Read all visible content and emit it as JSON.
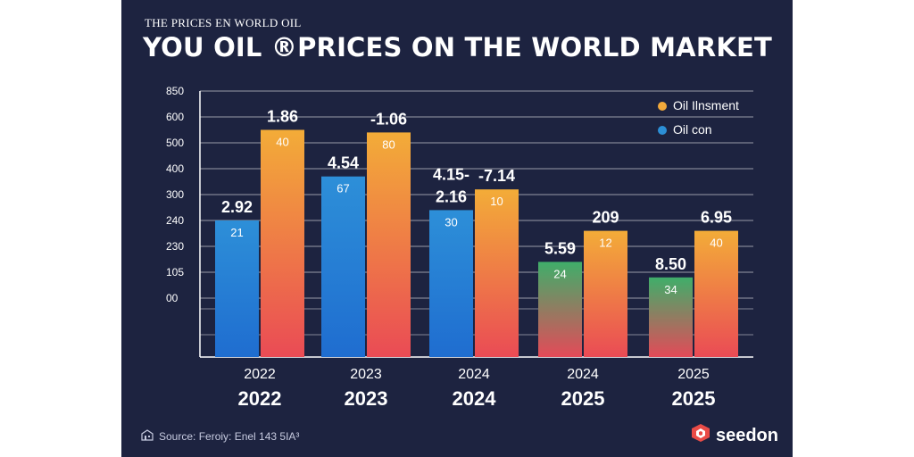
{
  "header": {
    "subtitle": "THE PRICES EN WORLD OIL",
    "title": "YOU OIL ®PRICES ON THE WORLD MARKET"
  },
  "colors": {
    "background": "#1d2340",
    "orange": "#f2a93b",
    "blue": "#2c8fd6",
    "green": "#3fae6a",
    "red": "#e9485a"
  },
  "chart_data": {
    "type": "bar",
    "title": "YOU OIL ®PRICES ON THE WORLD MARKET",
    "y_tick_labels": [
      "850",
      "600",
      "500",
      "400",
      "300",
      "240",
      "230",
      "105",
      "00"
    ],
    "categories": [
      {
        "year_top": "2022",
        "year_bottom": "2022"
      },
      {
        "year_top": "2023",
        "year_bottom": "2023"
      },
      {
        "year_top": "2024",
        "year_bottom": "2024"
      },
      {
        "year_top": "2024",
        "year_bottom": "2025"
      },
      {
        "year_top": "2025",
        "year_bottom": "2025"
      }
    ],
    "series": [
      {
        "name": "Oil con",
        "color_top": "#2d8fd8",
        "color_bottom": "#1f6dd0",
        "level_index": [
          5.0,
          3.3,
          4.6,
          6.6,
          7.2
        ],
        "bar_labels": [
          "21",
          "67",
          "30",
          "24",
          "34"
        ],
        "value_labels": [
          "2.92",
          "4.54",
          "2.16",
          "5.59",
          "8.50"
        ]
      },
      {
        "name": "Oil Ilnsment",
        "color_top": "#f3ac38",
        "color_bottom": "#ea4b55",
        "level_index": [
          1.5,
          1.6,
          3.8,
          5.4,
          5.4
        ],
        "bar_labels": [
          "40",
          "80",
          "10",
          "12",
          "40"
        ],
        "value_labels": [
          "1.86",
          "-1.06",
          "-7.14",
          "209",
          "6.95"
        ]
      }
    ],
    "extra_annotations": [
      {
        "category": 2,
        "text": "4.15-"
      }
    ],
    "legend": [
      {
        "label": "Oil Ilnsment",
        "color": "#f2a93b"
      },
      {
        "label": "Oil con",
        "color": "#2c8fd6"
      }
    ],
    "legend_position": "top-right",
    "grid": true
  },
  "footer": {
    "source": "Source: Feroiy: Enel 143 5IA³",
    "brand": "seedon"
  }
}
